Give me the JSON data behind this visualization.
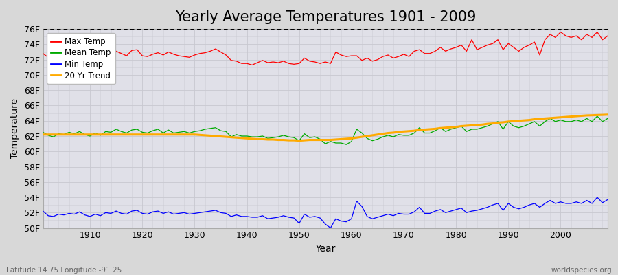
{
  "title": "Yearly Average Temperatures 1901 - 2009",
  "xlabel": "Year",
  "ylabel": "Temperature",
  "subtitle_left": "Latitude 14.75 Longitude -91.25",
  "subtitle_right": "worldspecies.org",
  "years": [
    1901,
    1902,
    1903,
    1904,
    1905,
    1906,
    1907,
    1908,
    1909,
    1910,
    1911,
    1912,
    1913,
    1914,
    1915,
    1916,
    1917,
    1918,
    1919,
    1920,
    1921,
    1922,
    1923,
    1924,
    1925,
    1926,
    1927,
    1928,
    1929,
    1930,
    1931,
    1932,
    1933,
    1934,
    1935,
    1936,
    1937,
    1938,
    1939,
    1940,
    1941,
    1942,
    1943,
    1944,
    1945,
    1946,
    1947,
    1948,
    1949,
    1950,
    1951,
    1952,
    1953,
    1954,
    1955,
    1956,
    1957,
    1958,
    1959,
    1960,
    1961,
    1962,
    1963,
    1964,
    1965,
    1966,
    1967,
    1968,
    1969,
    1970,
    1971,
    1972,
    1973,
    1974,
    1975,
    1976,
    1977,
    1978,
    1979,
    1980,
    1981,
    1982,
    1983,
    1984,
    1985,
    1986,
    1987,
    1988,
    1989,
    1990,
    1991,
    1992,
    1993,
    1994,
    1995,
    1996,
    1997,
    1998,
    1999,
    2000,
    2001,
    2002,
    2003,
    2004,
    2005,
    2006,
    2007,
    2008,
    2009
  ],
  "max_temp": [
    72.8,
    72.3,
    72.5,
    72.0,
    72.2,
    72.6,
    72.8,
    72.9,
    72.5,
    71.8,
    72.4,
    72.6,
    72.8,
    73.0,
    73.1,
    72.8,
    72.5,
    73.2,
    73.3,
    72.5,
    72.4,
    72.7,
    72.9,
    72.6,
    73.0,
    72.7,
    72.5,
    72.4,
    72.3,
    72.6,
    72.8,
    72.9,
    73.1,
    73.4,
    73.0,
    72.6,
    71.9,
    71.8,
    71.5,
    71.5,
    71.3,
    71.6,
    71.9,
    71.6,
    71.7,
    71.6,
    71.8,
    71.5,
    71.4,
    71.5,
    72.2,
    71.8,
    71.7,
    71.5,
    71.7,
    71.5,
    73.0,
    72.6,
    72.4,
    72.5,
    72.5,
    71.9,
    72.2,
    71.8,
    72.0,
    72.4,
    72.6,
    72.2,
    72.4,
    72.7,
    72.4,
    73.1,
    73.3,
    72.8,
    72.8,
    73.1,
    73.6,
    73.1,
    73.4,
    73.6,
    73.9,
    73.1,
    74.6,
    73.3,
    73.6,
    73.9,
    74.1,
    74.6,
    73.3,
    74.1,
    73.6,
    73.1,
    73.6,
    73.9,
    74.3,
    72.6,
    74.6,
    75.3,
    74.9,
    75.6,
    75.1,
    74.9,
    75.1,
    74.6,
    75.3,
    74.9,
    75.6,
    74.6,
    75.1
  ],
  "mean_temp": [
    62.5,
    62.1,
    61.9,
    62.3,
    62.2,
    62.5,
    62.3,
    62.6,
    62.2,
    62.0,
    62.4,
    62.1,
    62.6,
    62.5,
    62.9,
    62.6,
    62.4,
    62.8,
    62.9,
    62.5,
    62.4,
    62.7,
    62.9,
    62.4,
    62.8,
    62.4,
    62.5,
    62.6,
    62.4,
    62.6,
    62.7,
    62.9,
    63.0,
    63.1,
    62.7,
    62.6,
    61.9,
    62.2,
    62.0,
    62.0,
    61.9,
    61.9,
    62.0,
    61.7,
    61.8,
    61.9,
    62.1,
    61.9,
    61.8,
    61.4,
    62.3,
    61.8,
    61.9,
    61.6,
    61.0,
    61.3,
    61.1,
    61.1,
    60.9,
    61.3,
    62.9,
    62.4,
    61.7,
    61.4,
    61.6,
    61.9,
    62.1,
    61.9,
    62.2,
    62.1,
    62.1,
    62.4,
    63.1,
    62.4,
    62.4,
    62.7,
    63.1,
    62.6,
    62.9,
    63.1,
    63.3,
    62.6,
    62.9,
    62.9,
    63.1,
    63.3,
    63.6,
    63.9,
    62.9,
    63.9,
    63.3,
    63.1,
    63.3,
    63.6,
    63.9,
    63.3,
    63.9,
    64.3,
    63.9,
    64.1,
    63.9,
    63.9,
    64.1,
    63.9,
    64.3,
    63.9,
    64.6,
    63.9,
    64.3
  ],
  "min_temp": [
    52.2,
    51.6,
    51.5,
    51.8,
    51.7,
    51.9,
    51.8,
    52.1,
    51.7,
    51.5,
    51.8,
    51.6,
    52.0,
    51.9,
    52.2,
    51.9,
    51.8,
    52.2,
    52.3,
    51.9,
    51.8,
    52.1,
    52.2,
    51.9,
    52.1,
    51.8,
    51.9,
    52.0,
    51.8,
    51.9,
    52.0,
    52.1,
    52.2,
    52.3,
    52.0,
    51.9,
    51.5,
    51.7,
    51.5,
    51.5,
    51.4,
    51.4,
    51.6,
    51.2,
    51.3,
    51.4,
    51.6,
    51.4,
    51.3,
    50.6,
    51.8,
    51.4,
    51.5,
    51.3,
    50.5,
    50.0,
    51.2,
    50.9,
    50.8,
    51.2,
    53.5,
    52.8,
    51.5,
    51.2,
    51.4,
    51.6,
    51.8,
    51.6,
    51.9,
    51.8,
    51.8,
    52.1,
    52.7,
    51.9,
    51.9,
    52.2,
    52.4,
    52.0,
    52.2,
    52.4,
    52.6,
    52.0,
    52.2,
    52.3,
    52.5,
    52.7,
    53.0,
    53.2,
    52.3,
    53.2,
    52.7,
    52.5,
    52.7,
    53.0,
    53.2,
    52.7,
    53.2,
    53.6,
    53.2,
    53.4,
    53.2,
    53.2,
    53.4,
    53.2,
    53.6,
    53.2,
    54.0,
    53.3,
    53.7
  ],
  "trend_temp": [
    62.2,
    62.2,
    62.2,
    62.2,
    62.2,
    62.2,
    62.2,
    62.2,
    62.2,
    62.2,
    62.2,
    62.2,
    62.2,
    62.2,
    62.2,
    62.2,
    62.2,
    62.2,
    62.2,
    62.2,
    62.2,
    62.2,
    62.2,
    62.2,
    62.2,
    62.2,
    62.2,
    62.2,
    62.2,
    62.2,
    62.15,
    62.1,
    62.05,
    62.0,
    61.95,
    61.9,
    61.85,
    61.8,
    61.75,
    61.7,
    61.65,
    61.6,
    61.6,
    61.55,
    61.55,
    61.5,
    61.5,
    61.45,
    61.45,
    61.4,
    61.45,
    61.5,
    61.5,
    61.5,
    61.5,
    61.5,
    61.55,
    61.6,
    61.65,
    61.7,
    61.8,
    61.9,
    62.0,
    62.1,
    62.2,
    62.3,
    62.4,
    62.45,
    62.55,
    62.6,
    62.65,
    62.7,
    62.8,
    62.85,
    62.9,
    62.95,
    63.05,
    63.1,
    63.15,
    63.2,
    63.3,
    63.35,
    63.4,
    63.45,
    63.5,
    63.6,
    63.65,
    63.75,
    63.8,
    63.9,
    63.95,
    64.0,
    64.05,
    64.1,
    64.2,
    64.25,
    64.3,
    64.35,
    64.4,
    64.45,
    64.5,
    64.55,
    64.6,
    64.65,
    64.7,
    64.72,
    64.75,
    64.77,
    64.8
  ],
  "max_color": "#ff0000",
  "mean_color": "#00aa00",
  "min_color": "#0000ff",
  "trend_color": "#ffaa00",
  "bg_color": "#d8d8d8",
  "plot_bg_color": "#e0e0e8",
  "grid_color": "#c8c8d0",
  "ylim": [
    50,
    76
  ],
  "yticks": [
    50,
    52,
    54,
    56,
    58,
    60,
    62,
    64,
    66,
    68,
    70,
    72,
    74,
    76
  ],
  "ytick_labels": [
    "50F",
    "52F",
    "54F",
    "56F",
    "58F",
    "60F",
    "62F",
    "64F",
    "66F",
    "68F",
    "70F",
    "72F",
    "74F",
    "76F"
  ],
  "hline_y": 76,
  "title_fontsize": 15,
  "axis_fontsize": 10,
  "tick_fontsize": 9
}
